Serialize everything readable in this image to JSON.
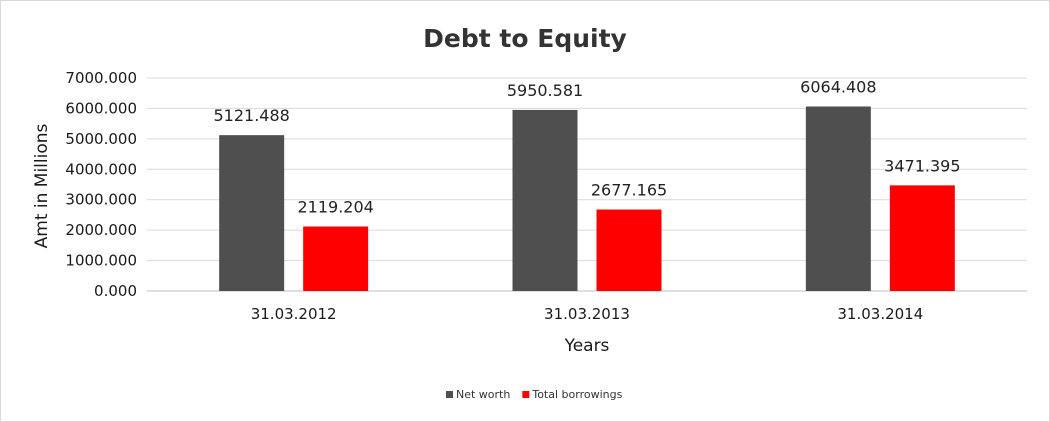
{
  "chart_data": {
    "type": "bar",
    "title": "Debt to Equity",
    "xlabel": "Years",
    "ylabel": "Amt in Millions",
    "categories": [
      "31.03.2012",
      "31.03.2013",
      "31.03.2014"
    ],
    "series": [
      {
        "name": "Net worth",
        "color": "#4f4f4f",
        "values": [
          5121.488,
          5950.581,
          6064.408
        ]
      },
      {
        "name": "Total borrowings",
        "color": "#ff0000",
        "values": [
          2119.204,
          2677.165,
          3471.395
        ]
      }
    ],
    "ylim": [
      0,
      7000
    ],
    "yticks": [
      "0.000",
      "1000.000",
      "2000.000",
      "3000.000",
      "4000.000",
      "5000.000",
      "6000.000",
      "7000.000"
    ],
    "data_labels": [
      [
        "5121.488",
        "5950.581",
        "6064.408"
      ],
      [
        "2119.204",
        "2677.165",
        "3471.395"
      ]
    ],
    "grid": true,
    "legend_position": "bottom"
  }
}
